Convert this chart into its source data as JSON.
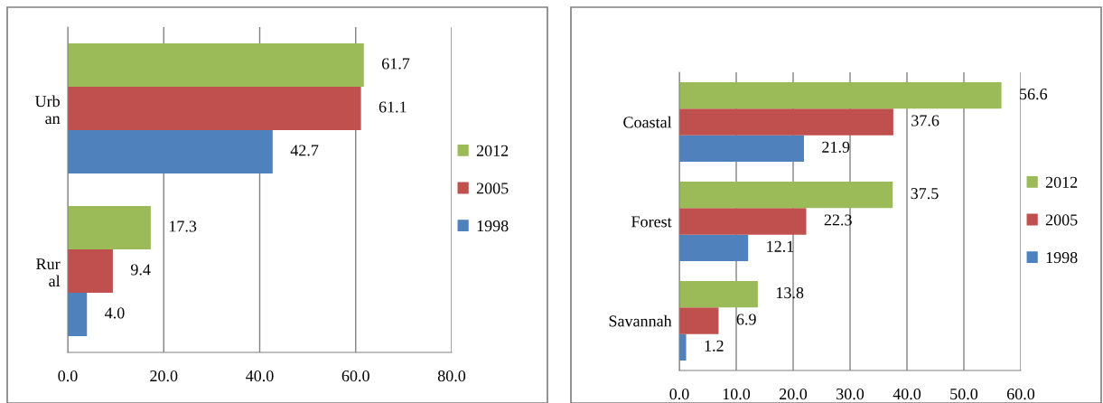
{
  "chart_data": [
    {
      "type": "bar",
      "orientation": "horizontal",
      "categories": [
        "Urb\nan",
        "Rur\nal"
      ],
      "xlim": [
        0,
        80
      ],
      "xticks": [
        {
          "value": 0,
          "label": "0.0"
        },
        {
          "value": 20,
          "label": "20.0"
        },
        {
          "value": 40,
          "label": "40.0"
        },
        {
          "value": 60,
          "label": "60.0"
        },
        {
          "value": 80,
          "label": "80.0"
        }
      ],
      "grid": "x",
      "legend": "right",
      "series": [
        {
          "name": "1998",
          "color": "#4f81bd",
          "values": [
            42.7,
            4.0
          ],
          "value_labels": [
            "42.7",
            "4.0"
          ]
        },
        {
          "name": "2005",
          "color": "#c0504d",
          "values": [
            61.1,
            9.4
          ],
          "value_labels": [
            "61.1",
            "9.4"
          ]
        },
        {
          "name": "2012",
          "color": "#9bbb59",
          "values": [
            61.7,
            17.3
          ],
          "value_labels": [
            "61.7",
            "17.3"
          ]
        }
      ]
    },
    {
      "type": "bar",
      "orientation": "horizontal",
      "categories": [
        "Coastal",
        "Forest",
        "Savannah"
      ],
      "xlim": [
        0,
        60
      ],
      "xticks": [
        {
          "value": 0,
          "label": "0.0"
        },
        {
          "value": 10,
          "label": "10.0"
        },
        {
          "value": 20,
          "label": "20.0"
        },
        {
          "value": 30,
          "label": "30.0"
        },
        {
          "value": 40,
          "label": "40.0"
        },
        {
          "value": 50,
          "label": "50.0"
        },
        {
          "value": 60,
          "label": "60.0"
        }
      ],
      "grid": "x",
      "legend": "right",
      "series": [
        {
          "name": "1998",
          "color": "#4f81bd",
          "values": [
            21.9,
            12.1,
            1.2
          ],
          "value_labels": [
            "21.9",
            "12.1",
            "1.2"
          ]
        },
        {
          "name": "2005",
          "color": "#c0504d",
          "values": [
            37.6,
            22.3,
            6.9
          ],
          "value_labels": [
            "37.6",
            "22.3",
            "6.9"
          ]
        },
        {
          "name": "2012",
          "color": "#9bbb59",
          "values": [
            56.6,
            37.5,
            13.8
          ],
          "value_labels": [
            "56.6",
            "37.5",
            "13.8"
          ]
        }
      ]
    }
  ]
}
